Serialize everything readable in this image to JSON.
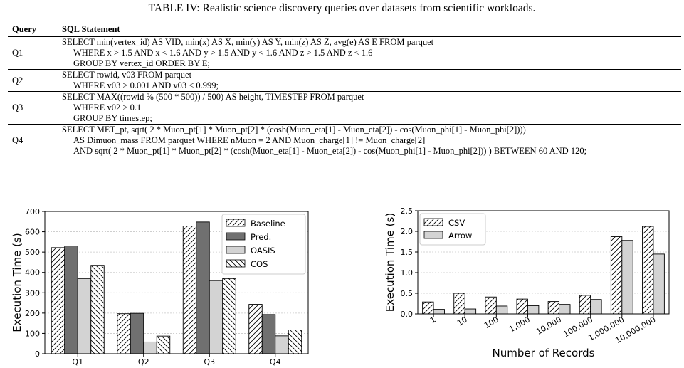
{
  "table": {
    "caption": "TABLE IV: Realistic science discovery queries over datasets from scientific workloads.",
    "headers": [
      "Query",
      "SQL Statement"
    ],
    "rows": [
      {
        "query": "Q1",
        "lines": [
          "SELECT min(vertex_id) AS VID, min(x) AS X, min(y) AS Y, min(z) AS Z, avg(e) AS E FROM parquet",
          "WHERE x > 1.5 AND x < 1.6 AND y > 1.5 AND y < 1.6 AND z > 1.5 AND z < 1.6",
          "GROUP BY vertex_id ORDER BY E;"
        ]
      },
      {
        "query": "Q2",
        "lines": [
          "SELECT rowid, v03 FROM parquet",
          "WHERE v03 > 0.001 AND v03 < 0.999;"
        ]
      },
      {
        "query": "Q3",
        "lines": [
          "SELECT MAX((rowid % (500 * 500)) / 500) AS height, TIMESTEP FROM parquet",
          "WHERE v02 > 0.1",
          "GROUP BY timestep;"
        ]
      },
      {
        "query": "Q4",
        "lines": [
          "SELECT MET_pt, sqrt( 2 * Muon_pt[1] * Muon_pt[2] * (cosh(Muon_eta[1] - Muon_eta[2]) - cos(Muon_phi[1] - Muon_phi[2])))",
          "AS Dimuon_mass FROM parquet WHERE nMuon = 2 AND Muon_charge[1] != Muon_charge[2]",
          "AND sqrt( 2 * Muon_pt[1] * Muon_pt[2] * (cosh(Muon_eta[1] - Muon_eta[2]) - cos(Muon_phi[1] - Muon_phi[2])) ) BETWEEN 60 AND 120;"
        ]
      }
    ]
  },
  "chart_data": [
    {
      "type": "bar",
      "categories": [
        "Q1",
        "Q2",
        "Q3",
        "Q4"
      ],
      "series": [
        {
          "name": "Baseline",
          "values": [
            522,
            197,
            628,
            243
          ],
          "pattern": "hatch-forward",
          "color": "#ffffff"
        },
        {
          "name": "Pred.",
          "values": [
            530,
            199,
            648,
            193
          ],
          "pattern": "solid",
          "color": "#707070"
        },
        {
          "name": "OASIS",
          "values": [
            370,
            58,
            360,
            88
          ],
          "pattern": "solid",
          "color": "#d3d3d3"
        },
        {
          "name": "COS",
          "values": [
            435,
            87,
            370,
            117
          ],
          "pattern": "hatch-backward",
          "color": "#ffffff"
        }
      ],
      "ylabel": "Execution Time (s)",
      "xlabel": "",
      "ylim": [
        0,
        700
      ],
      "yticks": [
        "0",
        "100",
        "200",
        "300",
        "400",
        "500",
        "600",
        "700"
      ],
      "grid": true,
      "legend_position": "top-right"
    },
    {
      "type": "bar",
      "categories": [
        "1",
        "10",
        "100",
        "1,000",
        "10,000",
        "100,000",
        "1,000,000",
        "10,000,000"
      ],
      "series": [
        {
          "name": "CSV",
          "values": [
            0.29,
            0.5,
            0.41,
            0.36,
            0.3,
            0.45,
            1.87,
            2.12
          ],
          "pattern": "hatch-forward",
          "color": "#ffffff"
        },
        {
          "name": "Arrow",
          "values": [
            0.11,
            0.12,
            0.19,
            0.2,
            0.23,
            0.35,
            1.78,
            1.45
          ],
          "pattern": "solid",
          "color": "#d3d3d3"
        }
      ],
      "ylabel": "Execution Time (s)",
      "xlabel": "Number of Records",
      "ylim": [
        0,
        2.5
      ],
      "yticks": [
        "0.0",
        "0.5",
        "1.0",
        "1.5",
        "2.0",
        "2.5"
      ],
      "grid": true,
      "legend_position": "top-left"
    }
  ]
}
